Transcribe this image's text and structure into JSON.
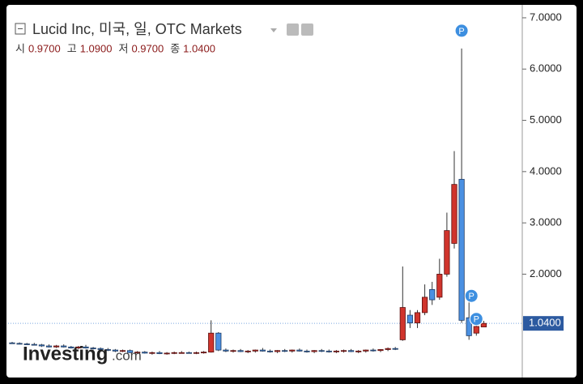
{
  "header": {
    "title": "Lucid Inc, 미국, 일, OTC Markets",
    "ohlc": [
      {
        "name": "시",
        "value": "0.9700"
      },
      {
        "name": "고",
        "value": "1.0900"
      },
      {
        "name": "저",
        "value": "0.9700"
      },
      {
        "name": "종",
        "value": "1.0400"
      }
    ]
  },
  "logo": {
    "brand": "Investing",
    "suffix": ".com"
  },
  "chart_data": {
    "type": "candlestick",
    "up_color": "#d0342c",
    "down_color": "#4a90e2",
    "ylim": [
      0,
      7.2
    ],
    "yticks": [
      {
        "value": 2,
        "label": "2.0000"
      },
      {
        "value": 3,
        "label": "3.0000"
      },
      {
        "value": 4,
        "label": "4.0000"
      },
      {
        "value": 5,
        "label": "5.0000"
      },
      {
        "value": 6,
        "label": "6.0000"
      },
      {
        "value": 7,
        "label": "7.0000"
      }
    ],
    "last_price": {
      "value": 1.04,
      "label": "1.0400"
    },
    "markers": [
      "P",
      "P",
      "P"
    ],
    "open": [
      0.66,
      0.65,
      0.64,
      0.63,
      0.62,
      0.6,
      0.58,
      0.6,
      0.58,
      0.56,
      0.58,
      0.56,
      0.55,
      0.53,
      0.52,
      0.5,
      0.51,
      0.47,
      0.48,
      0.46,
      0.47,
      0.45,
      0.46,
      0.47,
      0.47,
      0.46,
      0.47,
      0.48,
      0.85,
      0.52,
      0.5,
      0.51,
      0.49,
      0.5,
      0.52,
      0.5,
      0.49,
      0.51,
      0.5,
      0.52,
      0.5,
      0.49,
      0.51,
      0.5,
      0.49,
      0.5,
      0.51,
      0.49,
      0.5,
      0.52,
      0.51,
      0.53,
      0.55,
      0.72,
      1.2,
      1.05,
      1.25,
      1.7,
      1.55,
      2.0,
      2.6,
      3.85,
      1.15,
      0.85,
      0.97
    ],
    "high": [
      0.68,
      0.67,
      0.66,
      0.66,
      0.64,
      0.63,
      0.62,
      0.63,
      0.6,
      0.6,
      0.62,
      0.58,
      0.57,
      0.56,
      0.54,
      0.53,
      0.53,
      0.5,
      0.5,
      0.49,
      0.5,
      0.48,
      0.49,
      0.5,
      0.49,
      0.49,
      0.5,
      1.1,
      0.87,
      0.55,
      0.53,
      0.54,
      0.52,
      0.53,
      0.56,
      0.53,
      0.52,
      0.54,
      0.53,
      0.55,
      0.53,
      0.52,
      0.54,
      0.53,
      0.52,
      0.53,
      0.54,
      0.52,
      0.53,
      0.55,
      0.54,
      0.57,
      0.58,
      2.15,
      1.3,
      1.3,
      1.8,
      1.85,
      2.3,
      3.2,
      4.4,
      6.4,
      1.45,
      1.0,
      1.09
    ],
    "low": [
      0.64,
      0.63,
      0.62,
      0.61,
      0.58,
      0.57,
      0.56,
      0.57,
      0.55,
      0.54,
      0.55,
      0.53,
      0.52,
      0.5,
      0.48,
      0.48,
      0.46,
      0.44,
      0.45,
      0.43,
      0.44,
      0.43,
      0.44,
      0.45,
      0.45,
      0.44,
      0.45,
      0.47,
      0.5,
      0.48,
      0.47,
      0.48,
      0.46,
      0.47,
      0.49,
      0.47,
      0.46,
      0.48,
      0.47,
      0.49,
      0.47,
      0.46,
      0.48,
      0.47,
      0.46,
      0.47,
      0.48,
      0.46,
      0.47,
      0.49,
      0.48,
      0.5,
      0.52,
      0.7,
      0.95,
      0.95,
      1.2,
      1.4,
      1.5,
      1.95,
      2.5,
      1.05,
      0.72,
      0.8,
      0.97
    ],
    "close": [
      0.65,
      0.64,
      0.63,
      0.62,
      0.6,
      0.58,
      0.6,
      0.58,
      0.56,
      0.58,
      0.56,
      0.55,
      0.53,
      0.52,
      0.5,
      0.51,
      0.47,
      0.48,
      0.46,
      0.47,
      0.45,
      0.46,
      0.47,
      0.47,
      0.46,
      0.47,
      0.48,
      0.85,
      0.52,
      0.5,
      0.51,
      0.49,
      0.5,
      0.52,
      0.5,
      0.49,
      0.51,
      0.5,
      0.52,
      0.5,
      0.49,
      0.51,
      0.5,
      0.49,
      0.5,
      0.51,
      0.49,
      0.5,
      0.52,
      0.51,
      0.53,
      0.55,
      0.54,
      1.35,
      1.05,
      1.25,
      1.55,
      1.5,
      2.0,
      2.85,
      3.75,
      1.1,
      0.8,
      0.98,
      1.04
    ]
  }
}
